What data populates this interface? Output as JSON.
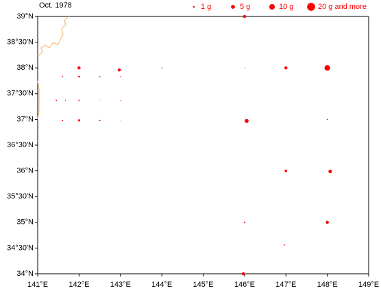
{
  "chart_data": {
    "type": "scatter",
    "title": "Oct. 1978",
    "color": "#ff0000",
    "coast_color": "#f0c080",
    "x": [
      146.0,
      142.0,
      142.97,
      144.0,
      146.0,
      147.0,
      148.0,
      141.6,
      142.0,
      142.5,
      143.0,
      141.45,
      141.67,
      142.0,
      142.5,
      143.0,
      141.6,
      142.0,
      142.5,
      143.0,
      146.05,
      148.0,
      147.0,
      148.07,
      146.0,
      148.0,
      146.96,
      145.97
    ],
    "values": [
      39.0,
      38.0,
      37.96,
      38.0,
      38.0,
      38.0,
      38.0,
      37.83,
      37.83,
      37.83,
      37.83,
      37.37,
      37.37,
      37.37,
      37.37,
      37.37,
      36.98,
      36.98,
      36.98,
      36.98,
      36.97,
      37.0,
      36.0,
      35.99,
      35.0,
      35.0,
      34.56,
      34.0
    ],
    "sizes": [
      3,
      3,
      3,
      0.3,
      0.2,
      3,
      10,
      0.5,
      1,
      0.5,
      0.3,
      0.5,
      0.3,
      0.5,
      0.1,
      0.2,
      0.7,
      1.5,
      0.7,
      0.1,
      5,
      0.5,
      2,
      4,
      0.7,
      3,
      0.5,
      3
    ],
    "size_legend": [
      {
        "value": 1,
        "label": "1 g"
      },
      {
        "value": 5,
        "label": "5 g"
      },
      {
        "value": 10,
        "label": "10 g"
      },
      {
        "value": 20,
        "label": "20 g and more"
      }
    ],
    "xlim": [
      141,
      149
    ],
    "ylim": [
      34,
      39
    ],
    "xticks": [
      {
        "value": 141,
        "label": "141°E"
      },
      {
        "value": 142,
        "label": "142°E"
      },
      {
        "value": 143,
        "label": "143°E"
      },
      {
        "value": 144,
        "label": "144°E"
      },
      {
        "value": 145,
        "label": "145°E"
      },
      {
        "value": 146,
        "label": "146°E"
      },
      {
        "value": 147,
        "label": "147°E"
      },
      {
        "value": 148,
        "label": "148°E"
      },
      {
        "value": 149,
        "label": "149°E"
      }
    ],
    "yticks": [
      {
        "value": 34,
        "label": "34°N"
      },
      {
        "value": 34.5,
        "label": "34°30'N"
      },
      {
        "value": 35,
        "label": "35°N"
      },
      {
        "value": 35.5,
        "label": "35°30'N"
      },
      {
        "value": 36,
        "label": "36°N"
      },
      {
        "value": 36.5,
        "label": "36°30'N"
      },
      {
        "value": 37,
        "label": "37°N"
      },
      {
        "value": 37.5,
        "label": "37°30'N"
      },
      {
        "value": 38,
        "label": "38°N"
      },
      {
        "value": 38.5,
        "label": "38°30'N"
      },
      {
        "value": 39,
        "label": "39°N"
      }
    ]
  }
}
